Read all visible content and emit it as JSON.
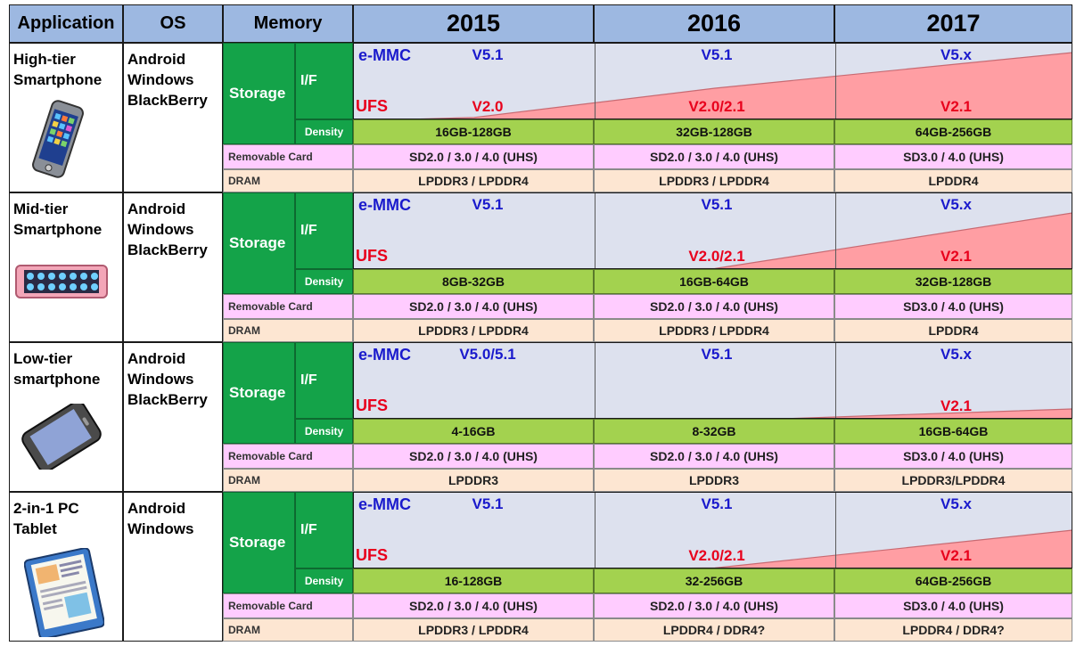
{
  "header": {
    "application": "Application",
    "os": "OS",
    "memory": "Memory",
    "years": [
      "2015",
      "2016",
      "2017"
    ]
  },
  "labels": {
    "storage": "Storage",
    "if": "I/F",
    "density": "Density",
    "removable_card": "Removable Card",
    "dram": "DRAM",
    "emmc": "e-MMC",
    "ufs": "UFS"
  },
  "colors": {
    "header": "#9db8e1",
    "storage_green": "#14a349",
    "density_green": "#a3d24f",
    "interface_bg": "#dde1ee",
    "removable_pink": "#ffccff",
    "dram_peach": "#fde6d2",
    "emmc_blue": "#1a1acc",
    "ufs_red": "#e8001c",
    "ufs_wedge": "#ff9ea3"
  },
  "groups": [
    {
      "application": [
        "High-tier",
        "Smartphone"
      ],
      "os": [
        "Android",
        "Windows",
        "BlackBerry"
      ],
      "device_icon": "smartphone-icon",
      "emmc": [
        "V5.1",
        "V5.1",
        "V5.x"
      ],
      "ufs": [
        "V2.0",
        "V2.0/2.1",
        "V2.1"
      ],
      "ufs_adoption": [
        0.04,
        0.45,
        0.95
      ],
      "density": [
        "16GB-128GB",
        "32GB-128GB",
        "64GB-256GB"
      ],
      "removable": [
        "SD2.0 / 3.0 / 4.0 (UHS)",
        "SD2.0 / 3.0 / 4.0 (UHS)",
        "SD3.0 / 4.0 (UHS)"
      ],
      "dram": [
        "LPDDR3 / LPDDR4",
        "LPDDR3 / LPDDR4",
        "LPDDR4"
      ]
    },
    {
      "application": [
        "Mid-tier",
        "Smartphone"
      ],
      "os": [
        "Android",
        "Windows",
        "BlackBerry"
      ],
      "device_icon": "pink-tablet-phone-icon",
      "emmc": [
        "V5.1",
        "V5.1",
        "V5.x"
      ],
      "ufs": [
        "",
        "V2.0/2.1",
        "V2.1"
      ],
      "ufs_adoption": [
        0,
        0.02,
        0.8
      ],
      "density": [
        "8GB-32GB",
        "16GB-64GB",
        "32GB-128GB"
      ],
      "removable": [
        "SD2.0 / 3.0 / 4.0 (UHS)",
        "SD2.0 / 3.0 / 4.0 (UHS)",
        "SD3.0 / 4.0 (UHS)"
      ],
      "dram": [
        "LPDDR3 / LPDDR4",
        "LPDDR3 / LPDDR4",
        "LPDDR4"
      ]
    },
    {
      "application": [
        "Low-tier",
        "smartphone"
      ],
      "os": [
        "Android",
        "Windows",
        "BlackBerry"
      ],
      "device_icon": "handset-icon",
      "emmc": [
        "V5.0/5.1",
        "V5.1",
        "V5.x"
      ],
      "ufs": [
        "",
        "",
        "V2.1"
      ],
      "ufs_adoption": [
        0,
        0,
        0.15
      ],
      "density": [
        "4-16GB",
        "8-32GB",
        "16GB-64GB"
      ],
      "removable": [
        "SD2.0 / 3.0 / 4.0 (UHS)",
        "SD2.0 / 3.0 / 4.0 (UHS)",
        "SD3.0 / 4.0 (UHS)"
      ],
      "dram": [
        "LPDDR3",
        "LPDDR3",
        "LPDDR3/LPDDR4"
      ]
    },
    {
      "application": [
        "2-in-1 PC",
        "Tablet"
      ],
      "os": [
        "Android",
        "Windows"
      ],
      "device_icon": "tablet-icon",
      "emmc": [
        "V5.1",
        "V5.1",
        "V5.x"
      ],
      "ufs": [
        "",
        "V2.0/2.1",
        "V2.1"
      ],
      "ufs_adoption": [
        0,
        0.02,
        0.55
      ],
      "density": [
        "16-128GB",
        "32-256GB",
        "64GB-256GB"
      ],
      "removable": [
        "SD2.0 / 3.0 / 4.0 (UHS)",
        "SD2.0 / 3.0 / 4.0 (UHS)",
        "SD3.0 / 4.0 (UHS)"
      ],
      "dram": [
        "LPDDR3 / LPDDR4",
        "LPDDR4 / DDR4?",
        "LPDDR4 / DDR4?"
      ]
    }
  ]
}
